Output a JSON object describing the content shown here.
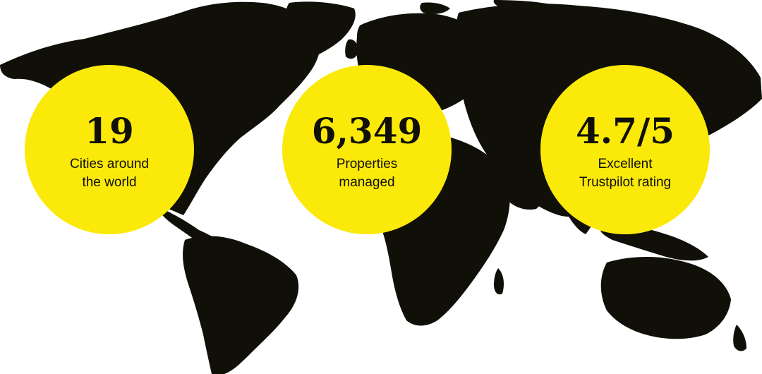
{
  "theme": {
    "map_color": "#111008",
    "circle_color": "#fbe90a",
    "text_color": "#111008"
  },
  "stats": [
    {
      "value": "19",
      "label_lines": [
        "Cities around",
        "the world"
      ]
    },
    {
      "value": "6,349",
      "label_lines": [
        "Properties",
        "managed"
      ]
    },
    {
      "value": "4.7/5",
      "label_lines": [
        "Excellent",
        "Trustpilot rating"
      ]
    }
  ]
}
